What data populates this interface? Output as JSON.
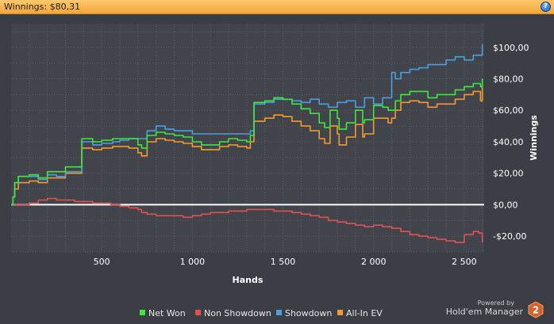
{
  "header": {
    "title": "Winnings: $80,31",
    "help_icon": "help-icon",
    "help_glyph": "?"
  },
  "brand": {
    "powered_by": "Powered by",
    "name": "Hold'em Manager",
    "logo_text": "2"
  },
  "colors": {
    "background": "#3b3e44",
    "plot_background": "#41444b",
    "grid": "#5a5d63",
    "zero_line": "#ffffff",
    "net_won": "#3ee83e",
    "non_showdown": "#e05252",
    "showdown": "#4b9fe0",
    "all_in_ev": "#f39a2f"
  },
  "chart_data": {
    "type": "line",
    "title": "",
    "xlabel": "Hands",
    "ylabel": "Winnings",
    "xlim": [
      0,
      2610
    ],
    "ylim": [
      -30,
      115
    ],
    "x_ticks": [
      500,
      1000,
      1500,
      2000,
      2500
    ],
    "x_tick_labels": [
      "500",
      "1 000",
      "1 500",
      "2 000",
      "2 500"
    ],
    "y_ticks": [
      -20,
      0,
      20,
      40,
      60,
      80,
      100
    ],
    "y_tick_labels": [
      "-$20,00",
      "$0,00",
      "$20,00",
      "$40,00",
      "$60,00",
      "$80,00",
      "$100,00"
    ],
    "grid": true,
    "legend_position": "bottom",
    "series": [
      {
        "name": "Net Won",
        "color": "#3ee83e",
        "points": [
          [
            0,
            0
          ],
          [
            10,
            5
          ],
          [
            20,
            14
          ],
          [
            40,
            18
          ],
          [
            100,
            19
          ],
          [
            150,
            17
          ],
          [
            200,
            21
          ],
          [
            250,
            21
          ],
          [
            300,
            24
          ],
          [
            380,
            24
          ],
          [
            390,
            42
          ],
          [
            450,
            40
          ],
          [
            500,
            41
          ],
          [
            560,
            42
          ],
          [
            600,
            42
          ],
          [
            650,
            42
          ],
          [
            700,
            38
          ],
          [
            720,
            36
          ],
          [
            750,
            44
          ],
          [
            800,
            46
          ],
          [
            850,
            45
          ],
          [
            900,
            44
          ],
          [
            950,
            43
          ],
          [
            1000,
            40
          ],
          [
            1050,
            38
          ],
          [
            1100,
            38
          ],
          [
            1150,
            40
          ],
          [
            1200,
            42
          ],
          [
            1250,
            41
          ],
          [
            1300,
            40
          ],
          [
            1320,
            44
          ],
          [
            1340,
            65
          ],
          [
            1400,
            66
          ],
          [
            1450,
            68
          ],
          [
            1500,
            67
          ],
          [
            1550,
            64
          ],
          [
            1600,
            61
          ],
          [
            1650,
            58
          ],
          [
            1700,
            52
          ],
          [
            1730,
            49
          ],
          [
            1760,
            60
          ],
          [
            1780,
            60
          ],
          [
            1800,
            55
          ],
          [
            1810,
            48
          ],
          [
            1850,
            52
          ],
          [
            1900,
            60
          ],
          [
            1920,
            60
          ],
          [
            1940,
            52
          ],
          [
            1950,
            54
          ],
          [
            2000,
            63
          ],
          [
            2050,
            62
          ],
          [
            2080,
            60
          ],
          [
            2100,
            60
          ],
          [
            2120,
            66
          ],
          [
            2150,
            70
          ],
          [
            2200,
            72
          ],
          [
            2250,
            72
          ],
          [
            2300,
            68
          ],
          [
            2350,
            70
          ],
          [
            2400,
            70
          ],
          [
            2450,
            73
          ],
          [
            2500,
            75
          ],
          [
            2550,
            77
          ],
          [
            2580,
            77
          ],
          [
            2590,
            75
          ],
          [
            2600,
            80
          ]
        ]
      },
      {
        "name": "Non Showdown",
        "color": "#e05252",
        "points": [
          [
            0,
            0
          ],
          [
            50,
            0
          ],
          [
            100,
            1
          ],
          [
            150,
            3
          ],
          [
            200,
            4
          ],
          [
            250,
            3
          ],
          [
            300,
            3
          ],
          [
            350,
            2
          ],
          [
            400,
            2
          ],
          [
            450,
            1
          ],
          [
            500,
            1
          ],
          [
            550,
            0
          ],
          [
            600,
            -1
          ],
          [
            650,
            -2
          ],
          [
            700,
            -3
          ],
          [
            720,
            -5
          ],
          [
            750,
            -6
          ],
          [
            800,
            -7
          ],
          [
            850,
            -7
          ],
          [
            900,
            -7
          ],
          [
            950,
            -8
          ],
          [
            1000,
            -7
          ],
          [
            1050,
            -6
          ],
          [
            1100,
            -5
          ],
          [
            1150,
            -5
          ],
          [
            1200,
            -4
          ],
          [
            1250,
            -4
          ],
          [
            1300,
            -3
          ],
          [
            1350,
            -3
          ],
          [
            1400,
            -3
          ],
          [
            1450,
            -4
          ],
          [
            1500,
            -4
          ],
          [
            1550,
            -5
          ],
          [
            1600,
            -6
          ],
          [
            1650,
            -7
          ],
          [
            1700,
            -8
          ],
          [
            1750,
            -10
          ],
          [
            1800,
            -11
          ],
          [
            1850,
            -12
          ],
          [
            1900,
            -13
          ],
          [
            1950,
            -14
          ],
          [
            2000,
            -13
          ],
          [
            2050,
            -14
          ],
          [
            2100,
            -15
          ],
          [
            2150,
            -17
          ],
          [
            2200,
            -19
          ],
          [
            2250,
            -20
          ],
          [
            2300,
            -21
          ],
          [
            2350,
            -22
          ],
          [
            2400,
            -23
          ],
          [
            2450,
            -24
          ],
          [
            2500,
            -19
          ],
          [
            2550,
            -17
          ],
          [
            2580,
            -18
          ],
          [
            2600,
            -24
          ]
        ]
      },
      {
        "name": "Showdown",
        "color": "#4b9fe0",
        "points": [
          [
            0,
            0
          ],
          [
            10,
            5
          ],
          [
            20,
            14
          ],
          [
            40,
            18
          ],
          [
            100,
            18
          ],
          [
            150,
            16
          ],
          [
            200,
            19
          ],
          [
            250,
            18
          ],
          [
            300,
            21
          ],
          [
            380,
            21
          ],
          [
            390,
            40
          ],
          [
            450,
            38
          ],
          [
            500,
            39
          ],
          [
            560,
            40
          ],
          [
            600,
            41
          ],
          [
            650,
            42
          ],
          [
            700,
            42
          ],
          [
            750,
            47
          ],
          [
            800,
            50
          ],
          [
            850,
            48
          ],
          [
            900,
            47
          ],
          [
            950,
            47
          ],
          [
            1000,
            45
          ],
          [
            1050,
            45
          ],
          [
            1100,
            45
          ],
          [
            1150,
            45
          ],
          [
            1200,
            45
          ],
          [
            1250,
            45
          ],
          [
            1300,
            45
          ],
          [
            1320,
            47
          ],
          [
            1340,
            64
          ],
          [
            1400,
            65
          ],
          [
            1450,
            67
          ],
          [
            1500,
            67
          ],
          [
            1550,
            66
          ],
          [
            1600,
            65
          ],
          [
            1650,
            67
          ],
          [
            1700,
            64
          ],
          [
            1750,
            62
          ],
          [
            1800,
            65
          ],
          [
            1850,
            66
          ],
          [
            1900,
            62
          ],
          [
            1950,
            68
          ],
          [
            2000,
            64
          ],
          [
            2050,
            68
          ],
          [
            2100,
            84
          ],
          [
            2120,
            80
          ],
          [
            2150,
            84
          ],
          [
            2200,
            86
          ],
          [
            2250,
            87
          ],
          [
            2300,
            89
          ],
          [
            2350,
            89
          ],
          [
            2400,
            92
          ],
          [
            2450,
            94
          ],
          [
            2500,
            92
          ],
          [
            2550,
            95
          ],
          [
            2580,
            95
          ],
          [
            2600,
            102
          ]
        ]
      },
      {
        "name": "All-In EV",
        "color": "#f39a2f",
        "points": [
          [
            0,
            0
          ],
          [
            10,
            5
          ],
          [
            20,
            10
          ],
          [
            40,
            14
          ],
          [
            100,
            15
          ],
          [
            150,
            14
          ],
          [
            200,
            17
          ],
          [
            250,
            17
          ],
          [
            300,
            20
          ],
          [
            380,
            20
          ],
          [
            390,
            36
          ],
          [
            450,
            35
          ],
          [
            500,
            36
          ],
          [
            560,
            37
          ],
          [
            600,
            37
          ],
          [
            650,
            36
          ],
          [
            700,
            33
          ],
          [
            720,
            31
          ],
          [
            750,
            40
          ],
          [
            800,
            42
          ],
          [
            850,
            41
          ],
          [
            900,
            40
          ],
          [
            950,
            39
          ],
          [
            1000,
            37
          ],
          [
            1050,
            35
          ],
          [
            1100,
            35
          ],
          [
            1150,
            37
          ],
          [
            1200,
            38
          ],
          [
            1250,
            37
          ],
          [
            1300,
            36
          ],
          [
            1320,
            40
          ],
          [
            1340,
            53
          ],
          [
            1400,
            55
          ],
          [
            1450,
            57
          ],
          [
            1500,
            56
          ],
          [
            1550,
            53
          ],
          [
            1600,
            50
          ],
          [
            1650,
            47
          ],
          [
            1700,
            42
          ],
          [
            1730,
            39
          ],
          [
            1760,
            50
          ],
          [
            1780,
            50
          ],
          [
            1800,
            45
          ],
          [
            1810,
            38
          ],
          [
            1850,
            43
          ],
          [
            1900,
            51
          ],
          [
            1920,
            51
          ],
          [
            1940,
            43
          ],
          [
            1950,
            45
          ],
          [
            2000,
            55
          ],
          [
            2050,
            55
          ],
          [
            2080,
            52
          ],
          [
            2100,
            55
          ],
          [
            2120,
            60
          ],
          [
            2150,
            65
          ],
          [
            2200,
            66
          ],
          [
            2250,
            65
          ],
          [
            2300,
            62
          ],
          [
            2350,
            64
          ],
          [
            2400,
            64
          ],
          [
            2450,
            67
          ],
          [
            2500,
            70
          ],
          [
            2550,
            72
          ],
          [
            2580,
            72
          ],
          [
            2590,
            66
          ],
          [
            2600,
            78
          ]
        ]
      }
    ]
  }
}
